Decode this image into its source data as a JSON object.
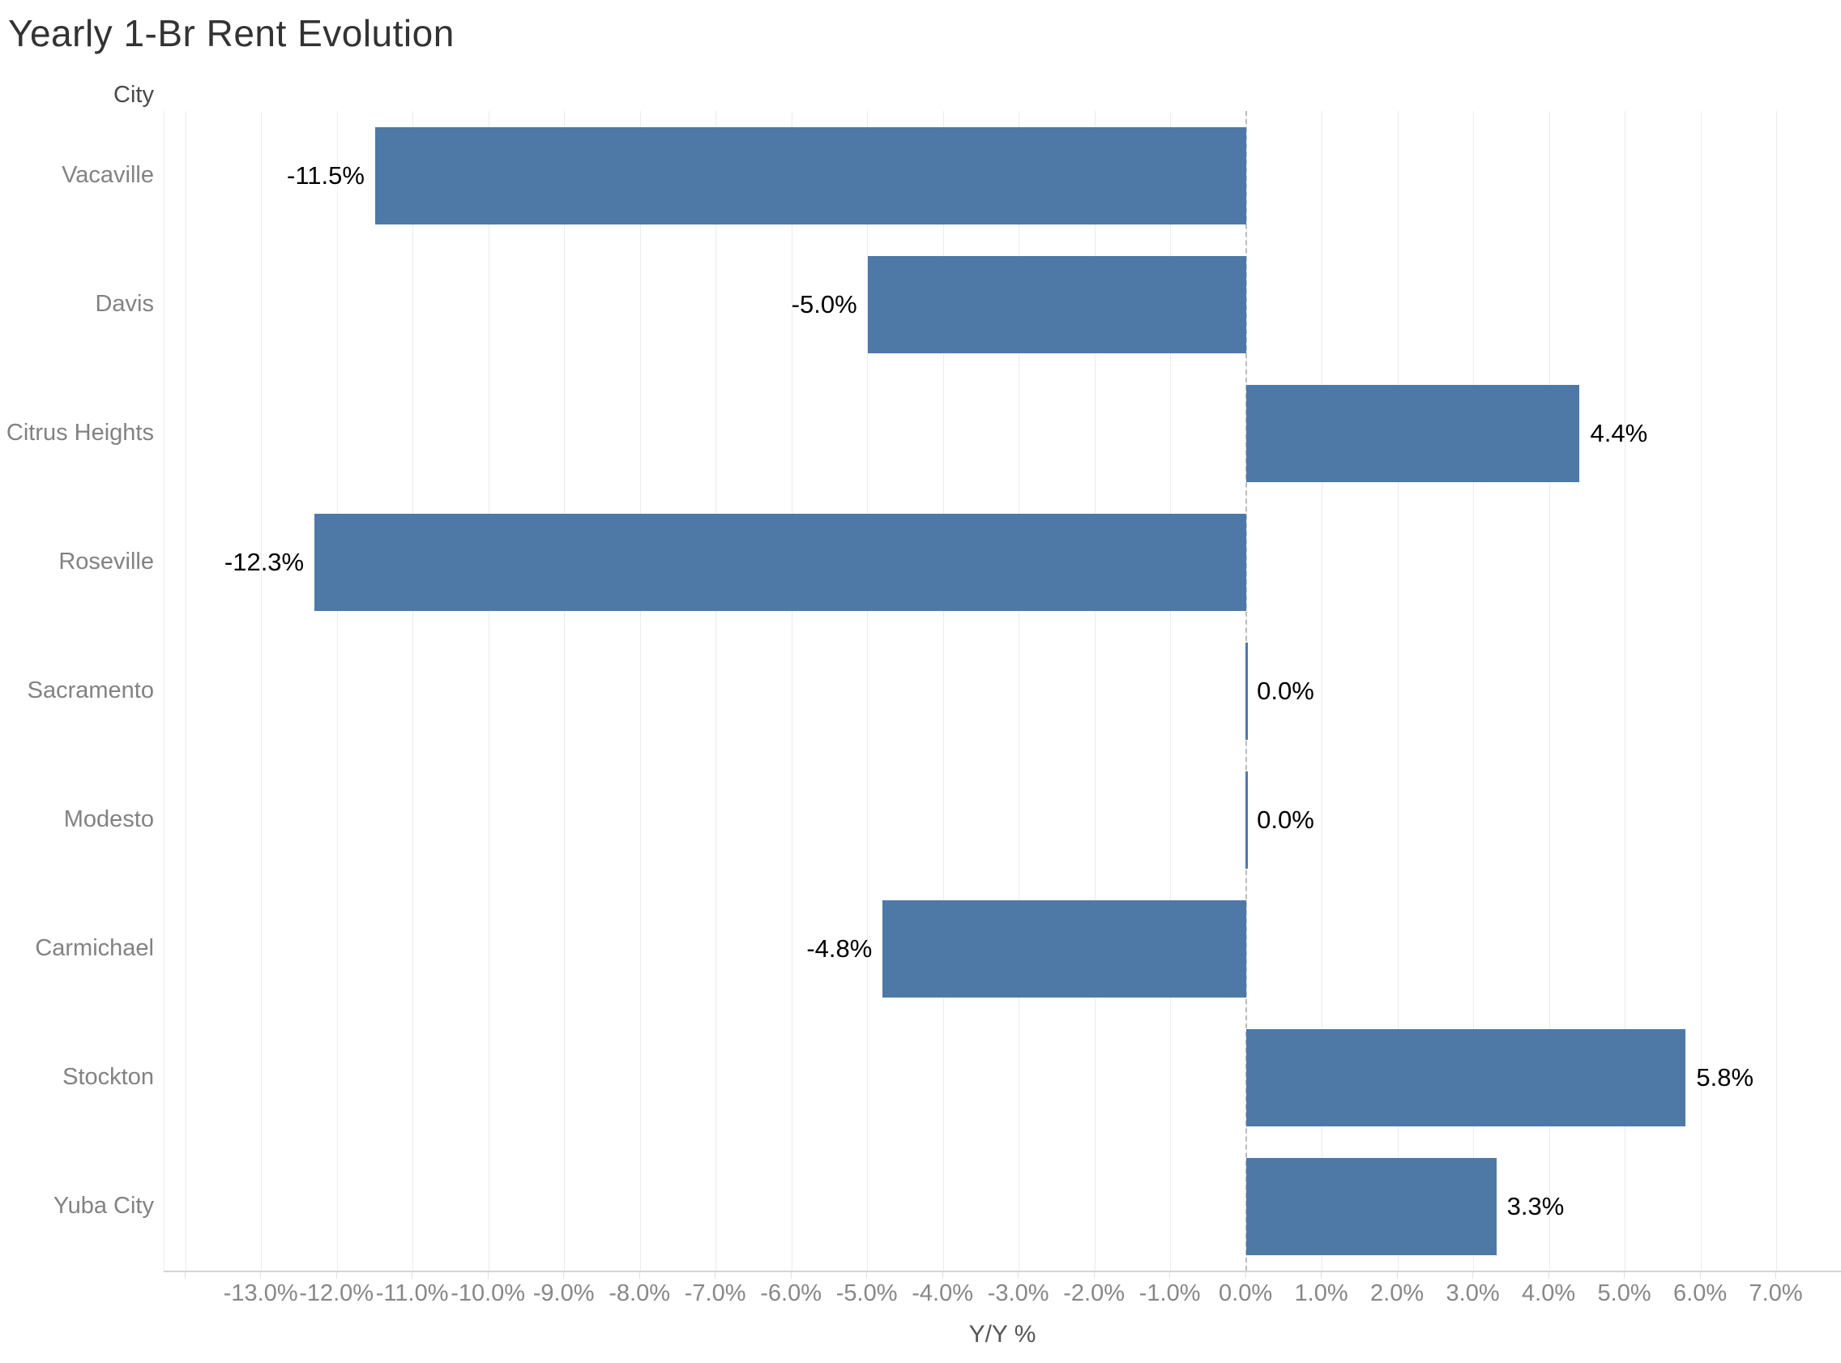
{
  "chart_data": {
    "type": "bar",
    "orientation": "horizontal",
    "title": "Yearly 1-Br Rent Evolution",
    "category_axis_label": "City",
    "categories": [
      "Vacaville",
      "Davis",
      "Citrus Heights",
      "Roseville",
      "Sacramento",
      "Modesto",
      "Carmichael",
      "Stockton",
      "Yuba City"
    ],
    "values": [
      -11.5,
      -5.0,
      4.4,
      -12.3,
      0.0,
      0.0,
      -4.8,
      5.8,
      3.3
    ],
    "value_labels": [
      "-11.5%",
      "-5.0%",
      "4.4%",
      "-12.3%",
      "0.0%",
      "0.0%",
      "-4.8%",
      "5.8%",
      "3.3%"
    ],
    "xlabel": "Y/Y %",
    "xlim": [
      -14.28,
      7.86
    ],
    "x_ticks": [
      -13,
      -12,
      -11,
      -10,
      -9,
      -8,
      -7,
      -6,
      -5,
      -4,
      -3,
      -2,
      -1,
      0,
      1,
      2,
      3,
      4,
      5,
      6,
      7
    ],
    "x_tick_labels": [
      "-13.0%",
      "-12.0%",
      "-11.0%",
      "-10.0%",
      "-9.0%",
      "-8.0%",
      "-7.0%",
      "-6.0%",
      "-5.0%",
      "-4.0%",
      "-3.0%",
      "-2.0%",
      "-1.0%",
      "0.0%",
      "1.0%",
      "2.0%",
      "3.0%",
      "4.0%",
      "5.0%",
      "6.0%",
      "7.0%"
    ],
    "gridline_values": [
      -14,
      -13,
      -12,
      -11,
      -10,
      -9,
      -8,
      -7,
      -6,
      -5,
      -4,
      -3,
      -2,
      -1,
      0,
      1,
      2,
      3,
      4,
      5,
      6,
      7
    ],
    "zero_reference_line": 0,
    "grid_on": true,
    "legend": "none",
    "style": {
      "bar_color": "#4e79a7",
      "gridline_color": "#ebebeb",
      "zero_line_color": "#bcbcbc",
      "axis_line_color": "#d4d4d4",
      "tick_mark_color": "#e0e0e0",
      "tick_label_color": "#878787",
      "category_label_color": "#828282",
      "category_header_color": "#4a4a4a",
      "value_label_color": "#000000",
      "title_color": "#333333",
      "axis_title_color": "#565656",
      "background_color": "#ffffff"
    }
  }
}
